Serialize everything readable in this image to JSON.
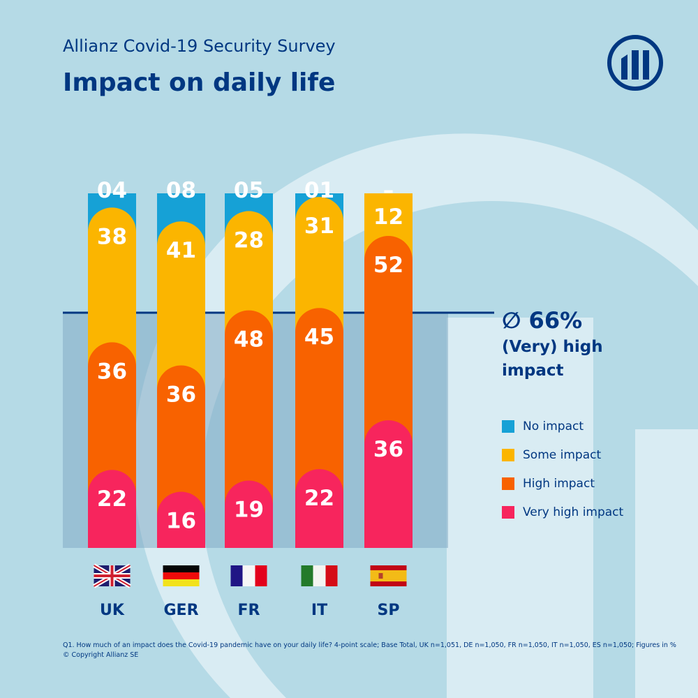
{
  "header": {
    "subtitle": "Allianz Covid-19 Security Survey",
    "title": "Impact on daily life"
  },
  "average": {
    "value": "∅ 66%",
    "label": "(Very) high impact"
  },
  "colors": {
    "No impact": "#16a1d6",
    "Some impact": "#fbb500",
    "High impact": "#f86200",
    "Very high impact": "#f7255d",
    "navy": "#003781"
  },
  "chart_data": {
    "type": "bar",
    "stacked": true,
    "categories": [
      "UK",
      "GER",
      "FR",
      "IT",
      "SP"
    ],
    "flags": [
      "uk-flag",
      "germany-flag",
      "france-flag",
      "italy-flag",
      "spain-flag"
    ],
    "series": [
      {
        "name": "No impact",
        "values": [
          4,
          8,
          5,
          1,
          0
        ],
        "labels": [
          "04",
          "08",
          "05",
          "01",
          "–"
        ]
      },
      {
        "name": "Some impact",
        "values": [
          38,
          41,
          28,
          31,
          12
        ],
        "labels": [
          "38",
          "41",
          "28",
          "31",
          "12"
        ]
      },
      {
        "name": "High impact",
        "values": [
          36,
          36,
          48,
          45,
          52
        ],
        "labels": [
          "36",
          "36",
          "48",
          "45",
          "52"
        ]
      },
      {
        "name": "Very high impact",
        "values": [
          22,
          16,
          19,
          22,
          36
        ],
        "labels": [
          "22",
          "16",
          "19",
          "22",
          "36"
        ]
      }
    ],
    "reference_line": 66,
    "ylim": [
      0,
      100
    ],
    "legend": "right"
  },
  "footnote": [
    "Q1. How much of an impact does the Covid-19 pandemic have on your daily life? 4-point scale; Base Total, UK n=1,051, DE n=1,050, FR n=1,050, IT n=1,050, ES n=1,050; Figures in %",
    "© Copyright Allianz SE"
  ],
  "logo": "Allianz"
}
